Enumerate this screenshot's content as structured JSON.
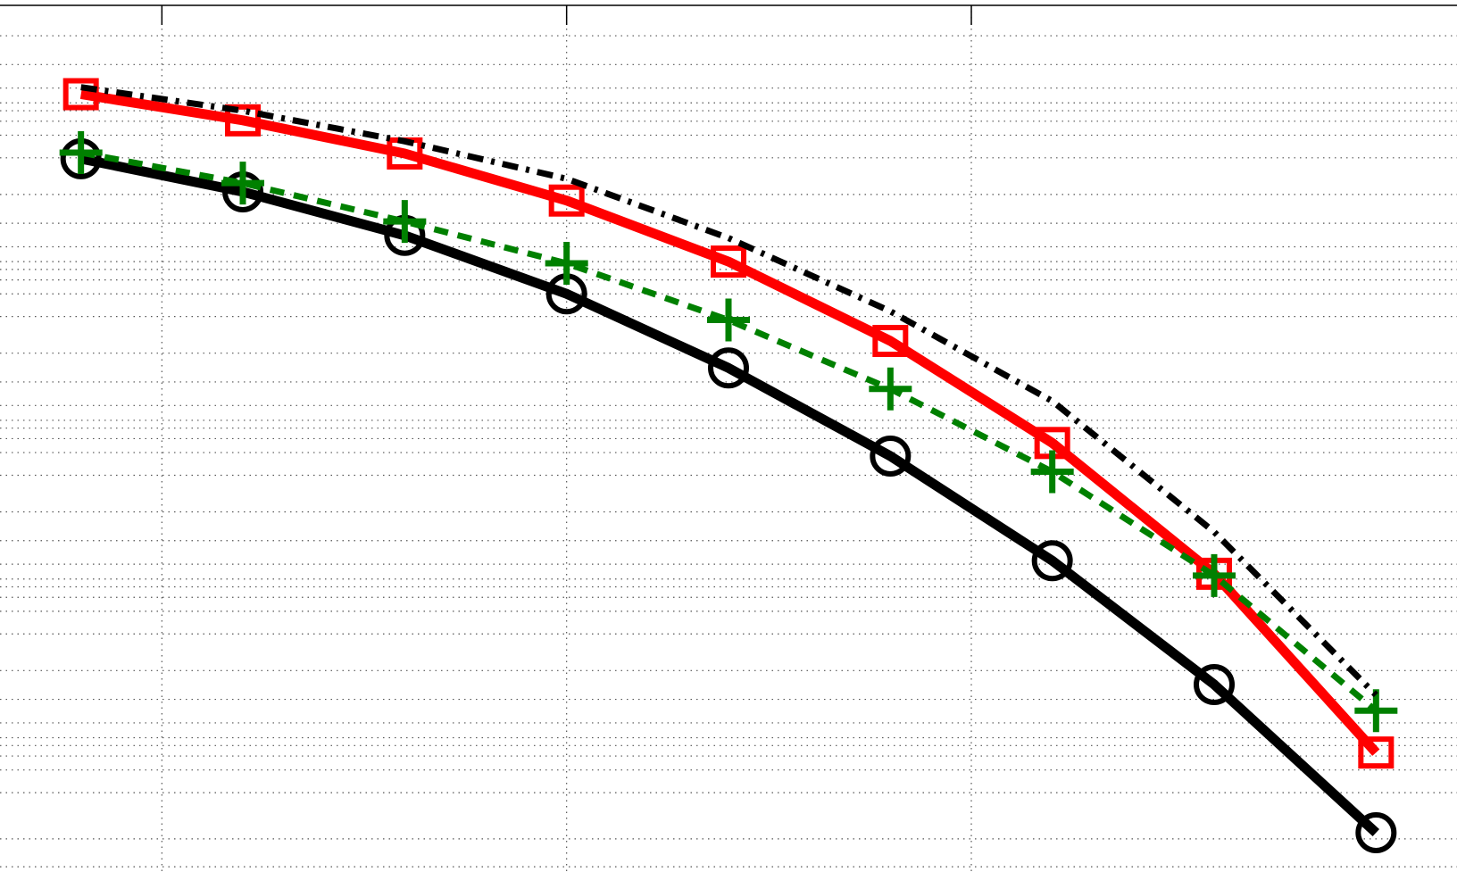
{
  "chart_data": {
    "type": "line",
    "grid": true,
    "grid_style": "dotted",
    "xlim": [
      -0.5,
      8.5
    ],
    "ylim": [
      0,
      1
    ],
    "x": [
      0,
      1,
      2,
      3,
      4,
      5,
      6,
      7,
      8
    ],
    "x_major_ticks": [
      0.5,
      3,
      5.5
    ],
    "y_minor_grid": [
      0.006,
      0.038,
      0.091,
      0.117,
      0.133,
      0.145,
      0.154,
      0.171,
      0.198,
      0.231,
      0.273,
      0.299,
      0.315,
      0.327,
      0.336,
      0.353,
      0.38,
      0.413,
      0.455,
      0.481,
      0.497,
      0.509,
      0.518,
      0.535,
      0.562,
      0.595,
      0.637,
      0.663,
      0.679,
      0.691,
      0.7,
      0.717,
      0.744,
      0.777,
      0.819,
      0.845,
      0.861,
      0.873,
      0.882,
      0.899,
      0.926,
      0.959
    ],
    "series": [
      {
        "color": "#000000",
        "line_style": "solid",
        "marker": "circle",
        "values": [
          0.818,
          0.78,
          0.73,
          0.663,
          0.578,
          0.477,
          0.357,
          0.215,
          0.045
        ]
      },
      {
        "color": "#ff0000",
        "line_style": "solid",
        "marker": "square",
        "values": [
          0.892,
          0.862,
          0.824,
          0.77,
          0.7,
          0.609,
          0.492,
          0.342,
          0.137
        ]
      },
      {
        "color": "#008000",
        "line_style": "dashed",
        "marker": "plus",
        "values": [
          0.825,
          0.79,
          0.746,
          0.698,
          0.633,
          0.554,
          0.459,
          0.34,
          0.185
        ]
      },
      {
        "color": "#000000",
        "line_style": "dash-dot",
        "marker": "none",
        "values": [
          0.9,
          0.873,
          0.838,
          0.795,
          0.727,
          0.643,
          0.54,
          0.39,
          0.203
        ]
      }
    ]
  }
}
